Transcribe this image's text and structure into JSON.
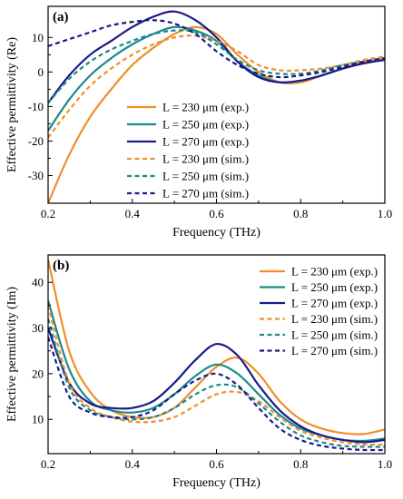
{
  "chart_data": [
    {
      "type": "line",
      "panel_label": "(a)",
      "xlabel": "Frequency (THz)",
      "ylabel": "Effective permittivity (Re)",
      "xlim": [
        0.2,
        1.0
      ],
      "ylim": [
        -38,
        19
      ],
      "xticks": [
        0.2,
        0.4,
        0.6,
        0.8,
        1.0
      ],
      "xtick_labels": [
        "0.2",
        "0.4",
        "0.6",
        "0.8",
        "1.0"
      ],
      "yticks": [
        -30,
        -20,
        -10,
        0,
        10
      ],
      "ytick_labels": [
        "-30",
        "-20",
        "-10",
        "0",
        "10"
      ],
      "legend_position": "lower-center",
      "series": [
        {
          "name": "L = 230 μm (exp.)",
          "color": "#f28e2b",
          "dash": "solid",
          "x": [
            0.2,
            0.25,
            0.3,
            0.35,
            0.4,
            0.45,
            0.5,
            0.55,
            0.6,
            0.65,
            0.7,
            0.75,
            0.8,
            0.85,
            0.9,
            0.95,
            1.0
          ],
          "y": [
            -38,
            -24,
            -13,
            -5,
            2,
            7,
            11,
            13,
            11,
            5,
            0,
            -3,
            -3,
            -1,
            1,
            3,
            4
          ]
        },
        {
          "name": "L = 250 μm (exp.)",
          "color": "#1a8a8a",
          "dash": "solid",
          "x": [
            0.2,
            0.25,
            0.3,
            0.35,
            0.4,
            0.45,
            0.5,
            0.55,
            0.6,
            0.65,
            0.7,
            0.75,
            0.8,
            0.85,
            0.9,
            0.95,
            1.0
          ],
          "y": [
            -17,
            -8,
            -1,
            4,
            8,
            11,
            13,
            12,
            9,
            3,
            -1,
            -3,
            -2.5,
            -1,
            1,
            2.5,
            3.5
          ]
        },
        {
          "name": "L = 270 μm (exp.)",
          "color": "#1a1a8a",
          "dash": "solid",
          "x": [
            0.2,
            0.25,
            0.3,
            0.35,
            0.4,
            0.45,
            0.5,
            0.55,
            0.6,
            0.65,
            0.7,
            0.75,
            0.8,
            0.85,
            0.9,
            0.95,
            1.0
          ],
          "y": [
            -9,
            -1,
            5,
            9,
            13,
            16,
            17.5,
            15,
            10,
            3,
            -1.5,
            -3,
            -2.5,
            -1,
            1,
            2.5,
            3.5
          ]
        },
        {
          "name": "L = 230 μm (sim.)",
          "color": "#f28e2b",
          "dash": "dashed",
          "x": [
            0.2,
            0.25,
            0.3,
            0.35,
            0.4,
            0.45,
            0.5,
            0.55,
            0.6,
            0.65,
            0.7,
            0.75,
            0.8,
            0.85,
            0.9,
            0.95,
            1.0
          ],
          "y": [
            -19,
            -11,
            -4,
            1,
            5,
            8,
            10,
            10.5,
            9,
            6,
            2,
            0.5,
            0.5,
            1,
            2,
            3.5,
            4.5
          ]
        },
        {
          "name": "L = 250 μm (sim.)",
          "color": "#1a8a8a",
          "dash": "dashed",
          "x": [
            0.2,
            0.25,
            0.3,
            0.35,
            0.4,
            0.45,
            0.5,
            0.55,
            0.6,
            0.65,
            0.7,
            0.75,
            0.8,
            0.85,
            0.9,
            0.95,
            1.0
          ],
          "y": [
            -9,
            -2,
            3,
            6.5,
            9,
            11,
            12,
            11.5,
            8,
            3.5,
            0.5,
            -0.5,
            -0.5,
            0.5,
            2,
            3,
            4
          ]
        },
        {
          "name": "L = 270 μm (sim.)",
          "color": "#1a1a8a",
          "dash": "dashed",
          "x": [
            0.2,
            0.25,
            0.3,
            0.35,
            0.4,
            0.45,
            0.5,
            0.55,
            0.6,
            0.65,
            0.7,
            0.75,
            0.8,
            0.85,
            0.9,
            0.95,
            1.0
          ],
          "y": [
            7.5,
            9.5,
            11.5,
            13.5,
            14.5,
            15,
            14,
            11,
            6,
            2,
            -0.5,
            -1.5,
            -1,
            0,
            1.5,
            3,
            4
          ]
        }
      ]
    },
    {
      "type": "line",
      "panel_label": "(b)",
      "xlabel": "Frequency (THz)",
      "ylabel": "Effective permittivity (Im)",
      "xlim": [
        0.2,
        1.0
      ],
      "ylim": [
        2.5,
        46
      ],
      "xticks": [
        0.2,
        0.4,
        0.6,
        0.8,
        1.0
      ],
      "xtick_labels": [
        "0.2",
        "0.4",
        "0.6",
        "0.8",
        "1.0"
      ],
      "yticks": [
        10,
        20,
        30,
        40
      ],
      "ytick_labels": [
        "10",
        "20",
        "30",
        "40"
      ],
      "legend_position": "top-right",
      "series": [
        {
          "name": "L = 230 μm (exp.)",
          "color": "#f28e2b",
          "dash": "solid",
          "x": [
            0.2,
            0.25,
            0.3,
            0.35,
            0.4,
            0.45,
            0.5,
            0.55,
            0.6,
            0.65,
            0.7,
            0.75,
            0.8,
            0.85,
            0.9,
            0.95,
            1.0
          ],
          "y": [
            45,
            25,
            16,
            12,
            10.5,
            10.5,
            12.5,
            17,
            21.5,
            23.5,
            20,
            14,
            10,
            8,
            7,
            6.8,
            7.8
          ]
        },
        {
          "name": "L = 250 μm (exp.)",
          "color": "#1a8a8a",
          "dash": "solid",
          "x": [
            0.2,
            0.25,
            0.3,
            0.35,
            0.4,
            0.45,
            0.5,
            0.55,
            0.6,
            0.65,
            0.7,
            0.75,
            0.8,
            0.85,
            0.9,
            0.95,
            1.0
          ],
          "y": [
            36,
            21,
            14,
            12,
            11.5,
            12.5,
            15.5,
            19.5,
            22,
            20,
            15.5,
            11,
            8,
            6.5,
            5.5,
            5.3,
            5.8
          ]
        },
        {
          "name": "L = 270 μm (exp.)",
          "color": "#1a1a8a",
          "dash": "solid",
          "x": [
            0.2,
            0.25,
            0.3,
            0.35,
            0.4,
            0.45,
            0.5,
            0.55,
            0.6,
            0.65,
            0.7,
            0.75,
            0.8,
            0.85,
            0.9,
            0.95,
            1.0
          ],
          "y": [
            30,
            18,
            13.5,
            12.5,
            12.5,
            14,
            18,
            23,
            26.5,
            24,
            17.5,
            12,
            8.5,
            6.5,
            5.5,
            5,
            5.5
          ]
        },
        {
          "name": "L = 230 μm (sim.)",
          "color": "#f28e2b",
          "dash": "dashed",
          "x": [
            0.2,
            0.25,
            0.3,
            0.35,
            0.4,
            0.45,
            0.5,
            0.55,
            0.6,
            0.65,
            0.7,
            0.75,
            0.8,
            0.85,
            0.9,
            0.95,
            1.0
          ],
          "y": [
            35,
            18,
            12.5,
            10.5,
            9.5,
            9.5,
            10.5,
            13,
            15.5,
            16,
            14,
            10.5,
            7.5,
            6,
            5,
            4.5,
            4.5
          ]
        },
        {
          "name": "L = 250 μm (sim.)",
          "color": "#1a8a8a",
          "dash": "dashed",
          "x": [
            0.2,
            0.25,
            0.3,
            0.35,
            0.4,
            0.45,
            0.5,
            0.55,
            0.6,
            0.65,
            0.7,
            0.75,
            0.8,
            0.85,
            0.9,
            0.95,
            1.0
          ],
          "y": [
            32,
            17,
            12,
            10.5,
            10,
            10.5,
            12.5,
            15.5,
            17.5,
            17,
            13.5,
            9.5,
            6.5,
            5,
            4.2,
            4,
            4
          ]
        },
        {
          "name": "L = 270 μm (sim.)",
          "color": "#1a1a8a",
          "dash": "dashed",
          "x": [
            0.2,
            0.25,
            0.3,
            0.35,
            0.4,
            0.45,
            0.5,
            0.55,
            0.6,
            0.65,
            0.7,
            0.75,
            0.8,
            0.85,
            0.9,
            0.95,
            1.0
          ],
          "y": [
            28,
            15,
            11.5,
            10.5,
            10.5,
            12,
            15.5,
            18.5,
            20,
            17.5,
            12.5,
            8,
            5.5,
            4.2,
            3.6,
            3.3,
            3.3
          ]
        }
      ]
    }
  ]
}
